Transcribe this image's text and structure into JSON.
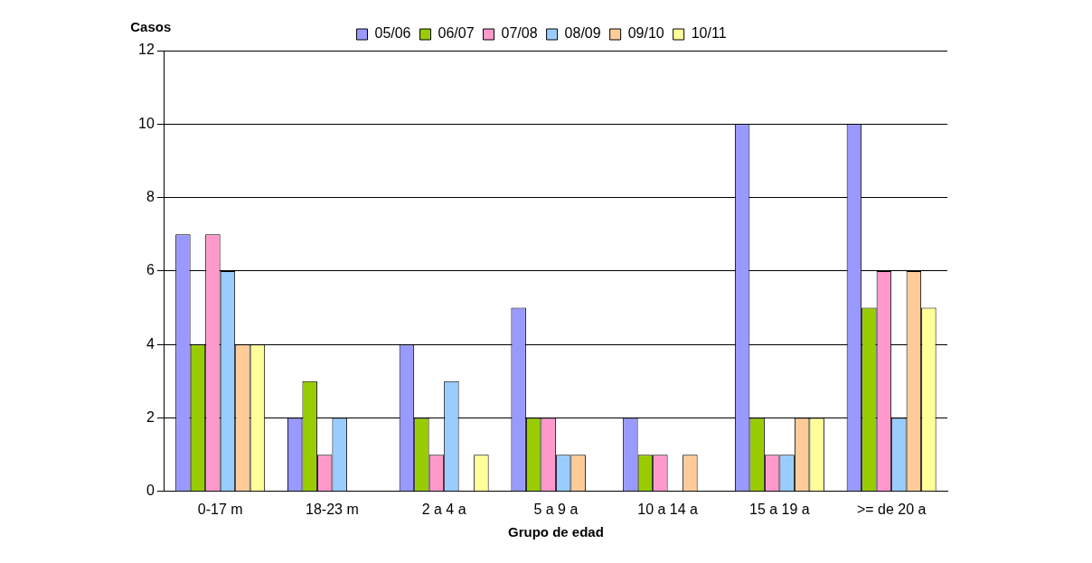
{
  "chart_data": {
    "type": "bar",
    "xlabel": "Grupo de edad",
    "ylabel": "Casos",
    "categories": [
      "0-17 m",
      "18-23 m",
      "2 a 4 a",
      "5 a 9 a",
      "10 a 14 a",
      "15 a 19 a",
      ">= de 20 a"
    ],
    "series": [
      {
        "name": "05/06",
        "color": "#9999ff",
        "values": [
          7,
          2,
          4,
          5,
          2,
          10,
          10
        ]
      },
      {
        "name": "06/07",
        "color": "#99cc00",
        "values": [
          4,
          3,
          2,
          2,
          1,
          2,
          5
        ]
      },
      {
        "name": "07/08",
        "color": "#ff99cc",
        "values": [
          7,
          1,
          1,
          2,
          1,
          1,
          6
        ]
      },
      {
        "name": "08/09",
        "color": "#99ccff",
        "values": [
          6,
          2,
          3,
          1,
          0,
          1,
          2
        ]
      },
      {
        "name": "09/10",
        "color": "#ffcc99",
        "values": [
          4,
          0,
          0,
          1,
          1,
          2,
          6
        ]
      },
      {
        "name": "10/11",
        "color": "#ffff99",
        "values": [
          4,
          0,
          1,
          0,
          0,
          2,
          5
        ]
      }
    ],
    "ylim": [
      0,
      12
    ],
    "yticks": [
      0,
      2,
      4,
      6,
      8,
      10,
      12
    ],
    "grid": "y",
    "legend": "top"
  }
}
